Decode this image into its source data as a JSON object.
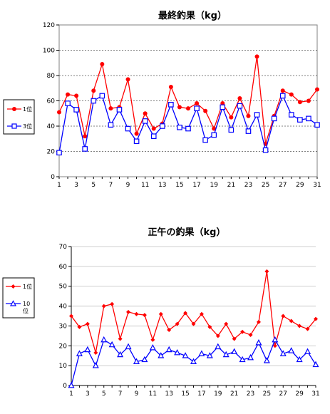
{
  "chart_data": [
    {
      "type": "line",
      "title": "最終釣果（kg）",
      "ylim": [
        0,
        120
      ],
      "yticks": [
        0,
        20,
        40,
        60,
        80,
        100,
        120
      ],
      "xticks": [
        1,
        3,
        5,
        7,
        9,
        11,
        13,
        15,
        17,
        19,
        21,
        23,
        25,
        27,
        29,
        31
      ],
      "x": [
        1,
        2,
        3,
        4,
        5,
        6,
        7,
        8,
        9,
        10,
        11,
        12,
        13,
        14,
        15,
        16,
        17,
        18,
        19,
        20,
        21,
        22,
        23,
        24,
        25,
        26,
        27,
        28,
        29,
        30,
        31
      ],
      "grid": "horizontal dotted",
      "legend_position": "left",
      "series": [
        {
          "name": "1位",
          "color": "#ff0000",
          "marker": "filled-circle",
          "values": [
            51,
            65,
            64,
            32,
            68,
            89,
            54,
            55,
            77,
            34,
            50,
            38,
            42,
            71,
            55,
            54,
            58,
            52,
            38,
            58,
            47,
            62,
            48,
            95,
            26,
            48,
            68,
            65,
            59,
            60,
            69
          ]
        },
        {
          "name": "3位",
          "color": "#0000ff",
          "marker": "open-square",
          "values": [
            19,
            58,
            53,
            22,
            60,
            64,
            41,
            53,
            38,
            28,
            44,
            32,
            40,
            57,
            39,
            38,
            54,
            29,
            33,
            55,
            37,
            56,
            36,
            49,
            21,
            46,
            64,
            49,
            45,
            46,
            41
          ]
        }
      ]
    },
    {
      "type": "line",
      "title": "正午の釣果（kg）",
      "ylim": [
        0,
        70
      ],
      "yticks": [
        0,
        10,
        20,
        30,
        40,
        50,
        60,
        70
      ],
      "xticks": [
        1,
        3,
        5,
        7,
        9,
        11,
        13,
        15,
        17,
        19,
        21,
        23,
        25,
        27,
        29,
        31
      ],
      "x": [
        1,
        2,
        3,
        4,
        5,
        6,
        7,
        8,
        9,
        10,
        11,
        12,
        13,
        14,
        15,
        16,
        17,
        18,
        19,
        20,
        21,
        22,
        23,
        24,
        25,
        26,
        27,
        28,
        29,
        30,
        31
      ],
      "grid": "horizontal",
      "legend_position": "left",
      "series": [
        {
          "name": "1位",
          "color": "#ff0000",
          "marker": "filled-diamond",
          "values": [
            35,
            29.5,
            31,
            16.5,
            40,
            41,
            23.5,
            37,
            36,
            35.5,
            23,
            36,
            28,
            31,
            36.5,
            31,
            36,
            29.5,
            25,
            31,
            23.5,
            27,
            25.5,
            32,
            57.5,
            20,
            35,
            32.5,
            30,
            28.5,
            33.5
          ]
        },
        {
          "name": "10位",
          "color": "#0000ff",
          "marker": "open-triangle",
          "values": [
            0,
            16,
            18,
            10,
            23,
            20.5,
            15.5,
            19.5,
            12,
            13,
            19,
            15,
            18,
            16.5,
            15,
            12,
            16,
            15,
            19.5,
            15.5,
            17,
            13,
            14,
            21.5,
            12.5,
            23,
            16,
            17.5,
            13,
            17,
            10.5
          ]
        }
      ]
    }
  ]
}
